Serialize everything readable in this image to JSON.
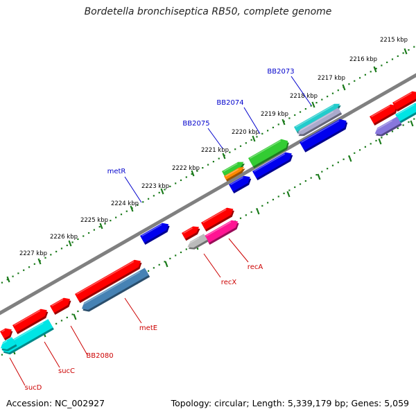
{
  "title": "Bordetella bronchiseptica RB50, complete genome",
  "footer": {
    "accession": "Accession: NC_002927",
    "summary": "Topology: circular; Length: 5,339,179 bp; Genes: 5,059"
  },
  "colors": {
    "backbone": "#808080",
    "tick": "#1a7a1a",
    "label_forward": "#0000cc",
    "label_reverse": "#cc0000"
  },
  "ticks": [
    "2215 kbp",
    "2216 kbp",
    "2217 kbp",
    "2218 kbp",
    "2219 kbp",
    "2220 kbp",
    "2221 kbp",
    "2222 kbp",
    "2223 kbp",
    "2224 kbp",
    "2225 kbp",
    "2226 kbp",
    "2227 kbp"
  ],
  "gene_labels": [
    "BB2073",
    "BB2074",
    "BB2075",
    "metR",
    "recA",
    "recX",
    "metE",
    "BB2080",
    "sucC",
    "sucD"
  ],
  "features": [
    {
      "color": "#ff0000"
    },
    {
      "color": "#ff0000"
    },
    {
      "color": "#00e5e5"
    },
    {
      "color": "#8877dd"
    },
    {
      "color": "#22cccc"
    },
    {
      "color": "#aaaacc"
    },
    {
      "color": "#0000ee"
    },
    {
      "color": "#33cc33"
    },
    {
      "color": "#0000ee"
    },
    {
      "color": "#33cc33"
    },
    {
      "color": "#ff8800"
    },
    {
      "color": "#0000ee"
    },
    {
      "color": "#0000ee"
    },
    {
      "color": "#ff0000"
    },
    {
      "color": "#ff0000"
    },
    {
      "color": "#ff1493"
    },
    {
      "color": "#bbbbbb"
    },
    {
      "color": "#ff0000"
    },
    {
      "color": "#4682b4"
    },
    {
      "color": "#ff0000"
    },
    {
      "color": "#ff0000"
    },
    {
      "color": "#00e5e5"
    },
    {
      "color": "#ff0000"
    },
    {
      "color": "#00e5e5"
    }
  ]
}
